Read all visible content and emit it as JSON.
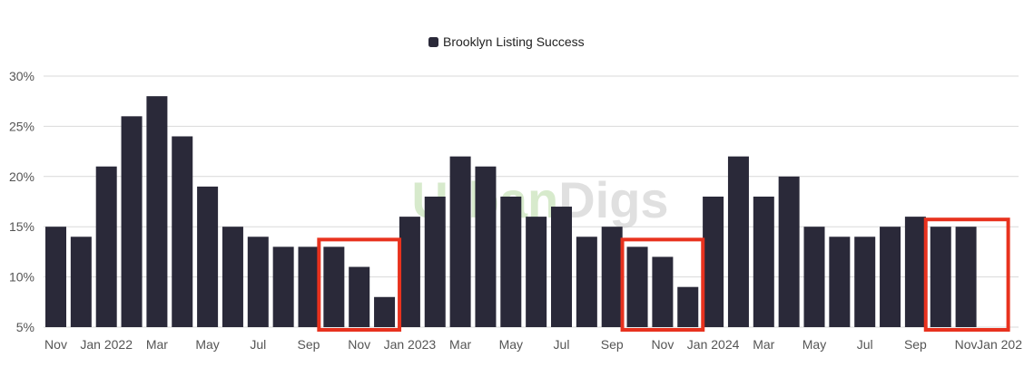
{
  "chart_data": {
    "type": "bar",
    "legend": {
      "label": "Brooklyn Listing Success",
      "placement": "top-center"
    },
    "series": [
      {
        "name": "Brooklyn Listing Success",
        "color": "#2a2939",
        "values": [
          15,
          14,
          21,
          26,
          28,
          24,
          19,
          15,
          14,
          13,
          13,
          13,
          11,
          8,
          16,
          18,
          22,
          21,
          18,
          16,
          17,
          14,
          15,
          13,
          12,
          9,
          18,
          22,
          18,
          20,
          15,
          14,
          14,
          15,
          16,
          15,
          15
        ]
      }
    ],
    "x_tick_labels": [
      "Nov",
      "Jan 2022",
      "Mar",
      "May",
      "Jul",
      "Sep",
      "Nov",
      "Jan 2023",
      "Mar",
      "May",
      "Jul",
      "Sep",
      "Nov",
      "Jan 2024",
      "Mar",
      "May",
      "Jul",
      "Sep",
      "Nov",
      "Jan 202"
    ],
    "y_ticks": [
      "5%",
      "10%",
      "15%",
      "20%",
      "25%",
      "30%"
    ],
    "y_tick_values": [
      5,
      10,
      15,
      20,
      25,
      30
    ],
    "ylim": [
      5,
      30
    ],
    "grid": "horizontal",
    "highlights": [
      {
        "first_bar": 11,
        "last_bar": 13,
        "color": "#e8321e"
      },
      {
        "first_bar": 23,
        "last_bar": 25,
        "color": "#e8321e"
      },
      {
        "first_bar": 35,
        "last_bar": 36,
        "color": "#e8321e"
      }
    ],
    "watermark": {
      "text_green": "Urban",
      "text_gray": "Digs"
    }
  }
}
